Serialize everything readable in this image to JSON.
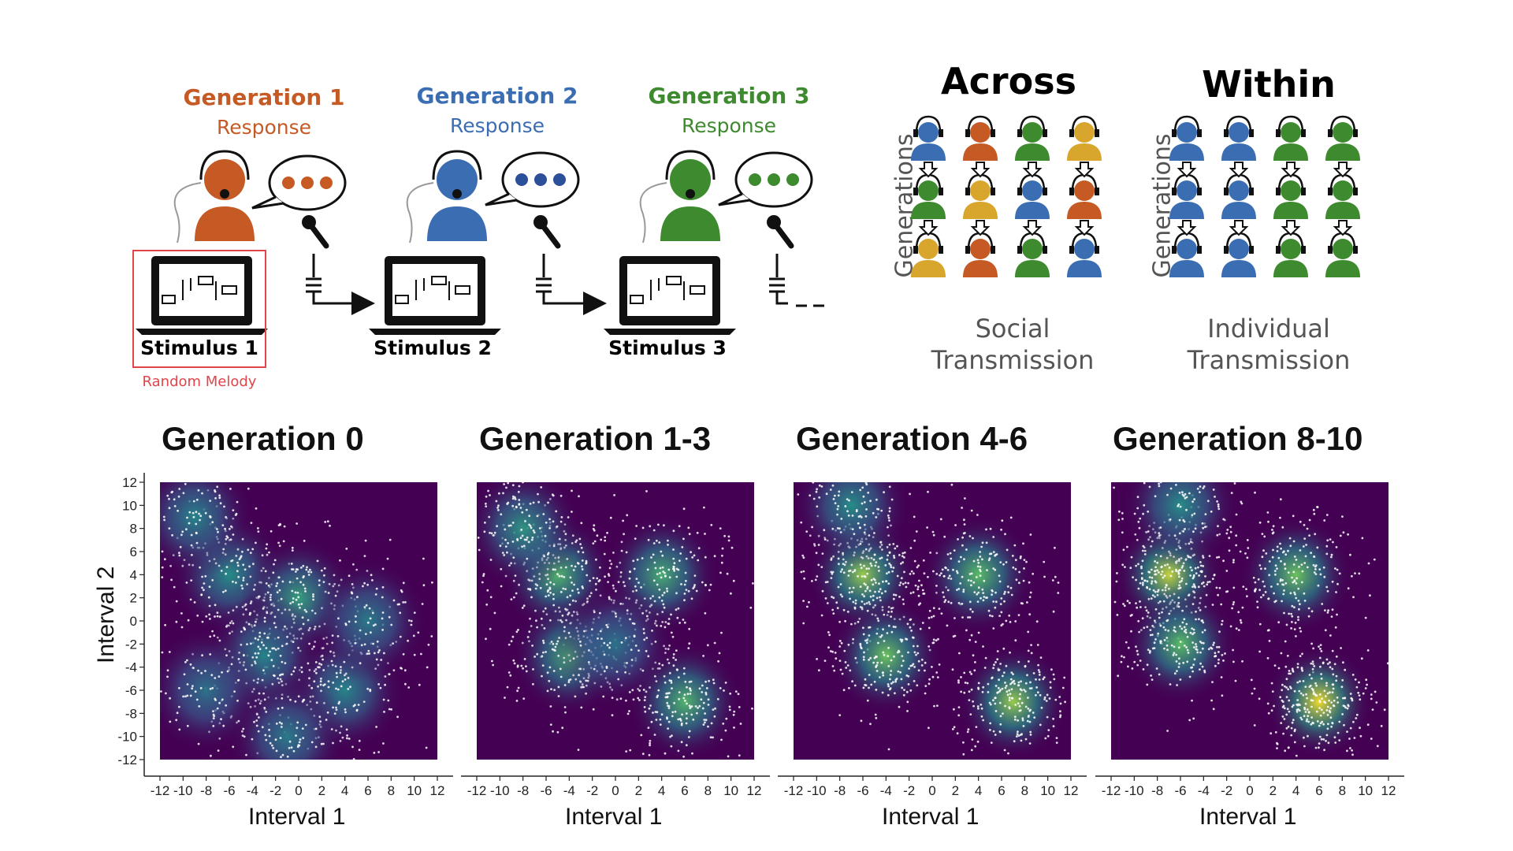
{
  "top_left": {
    "generations": [
      {
        "title": "Generation 1",
        "response": "Response",
        "color": "#c55a24"
      },
      {
        "title": "Generation 2",
        "response": "Response",
        "color": "#3b6db3"
      },
      {
        "title": "Generation 3",
        "response": "Response",
        "color": "#3e8a2e"
      }
    ],
    "stimuli": [
      "Stimulus 1",
      "Stimulus 2",
      "Stimulus 3"
    ],
    "random_melody": "Random Melody",
    "highlight_color": "#e0454a"
  },
  "top_right": {
    "across": {
      "heading": "Across",
      "axis": "Generations",
      "caption_line1": "Social",
      "caption_line2": "Transmission",
      "grid_colors": [
        [
          "#3b6db3",
          "#c55a24",
          "#3e8a2e",
          "#d8a62c"
        ],
        [
          "#3e8a2e",
          "#d8a62c",
          "#3b6db3",
          "#c55a24"
        ],
        [
          "#d8a62c",
          "#c55a24",
          "#3e8a2e",
          "#3b6db3"
        ]
      ]
    },
    "within": {
      "heading": "Within",
      "axis": "Generations",
      "caption_line1": "Individual",
      "caption_line2": "Transmission",
      "grid_colors": [
        [
          "#3b6db3",
          "#3b6db3",
          "#3e8a2e",
          "#3e8a2e"
        ],
        [
          "#3b6db3",
          "#3b6db3",
          "#3e8a2e",
          "#3e8a2e"
        ],
        [
          "#3b6db3",
          "#3b6db3",
          "#3e8a2e",
          "#3e8a2e"
        ]
      ]
    }
  },
  "chart_data": [
    {
      "type": "heatmap",
      "title": "Generation 0",
      "xlabel": "Interval 1",
      "ylabel": "Interval 2",
      "xlim": [
        -12,
        12
      ],
      "ylim": [
        -12,
        12
      ],
      "xticks": [
        "-12",
        "-10",
        "-8",
        "-6",
        "-4",
        "-2",
        "0",
        "2",
        "4",
        "6",
        "8",
        "10",
        "12"
      ],
      "yticks": [
        "12",
        "10",
        "8",
        "6",
        "4",
        "2",
        "0",
        "-2",
        "-4",
        "-6",
        "-8",
        "-10",
        "-12"
      ],
      "density_peaks": [
        {
          "x": -6,
          "y": 4,
          "intensity": 0.35
        },
        {
          "x": 0,
          "y": 2,
          "intensity": 0.45
        },
        {
          "x": -9,
          "y": 9,
          "intensity": 0.3
        },
        {
          "x": 4,
          "y": -6,
          "intensity": 0.3
        },
        {
          "x": -3,
          "y": -3,
          "intensity": 0.3
        },
        {
          "x": 6,
          "y": 0,
          "intensity": 0.25
        },
        {
          "x": -1,
          "y": -10,
          "intensity": 0.25
        },
        {
          "x": -8,
          "y": -6,
          "intensity": 0.2
        }
      ]
    },
    {
      "type": "heatmap",
      "title": "Generation 1-3",
      "xlabel": "Interval 1",
      "xlim": [
        -12,
        12
      ],
      "ylim": [
        -12,
        12
      ],
      "xticks": [
        "-12",
        "-10",
        "-8",
        "-6",
        "-4",
        "-2",
        "0",
        "2",
        "4",
        "6",
        "8",
        "10",
        "12"
      ],
      "density_peaks": [
        {
          "x": -5,
          "y": 4,
          "intensity": 0.6
        },
        {
          "x": -8,
          "y": 8,
          "intensity": 0.4
        },
        {
          "x": 4,
          "y": 4,
          "intensity": 0.55
        },
        {
          "x": -4,
          "y": -3,
          "intensity": 0.55
        },
        {
          "x": 6,
          "y": -7,
          "intensity": 0.6
        },
        {
          "x": 0,
          "y": -2,
          "intensity": 0.2
        }
      ]
    },
    {
      "type": "heatmap",
      "title": "Generation 4-6",
      "xlabel": "Interval 1",
      "xlim": [
        -12,
        12
      ],
      "ylim": [
        -12,
        12
      ],
      "xticks": [
        "-12",
        "-10",
        "-8",
        "-6",
        "-4",
        "-2",
        "0",
        "2",
        "4",
        "6",
        "8",
        "10",
        "12"
      ],
      "density_peaks": [
        {
          "x": -6,
          "y": 4,
          "intensity": 0.8
        },
        {
          "x": -4,
          "y": -3,
          "intensity": 0.7
        },
        {
          "x": 4,
          "y": 4,
          "intensity": 0.65
        },
        {
          "x": 7,
          "y": -7,
          "intensity": 0.8
        },
        {
          "x": -7,
          "y": 10,
          "intensity": 0.35
        }
      ]
    },
    {
      "type": "heatmap",
      "title": "Generation 8-10",
      "xlabel": "Interval 1",
      "xlim": [
        -12,
        12
      ],
      "ylim": [
        -12,
        12
      ],
      "xticks": [
        "-12",
        "-10",
        "-8",
        "-6",
        "-4",
        "-2",
        "0",
        "2",
        "4",
        "6",
        "8",
        "10",
        "12"
      ],
      "density_peaks": [
        {
          "x": -7,
          "y": 4,
          "intensity": 0.9
        },
        {
          "x": -6,
          "y": -2,
          "intensity": 0.65
        },
        {
          "x": 4,
          "y": 4,
          "intensity": 0.7
        },
        {
          "x": 6,
          "y": -7,
          "intensity": 1.0
        },
        {
          "x": -6,
          "y": 10,
          "intensity": 0.35
        }
      ]
    }
  ]
}
